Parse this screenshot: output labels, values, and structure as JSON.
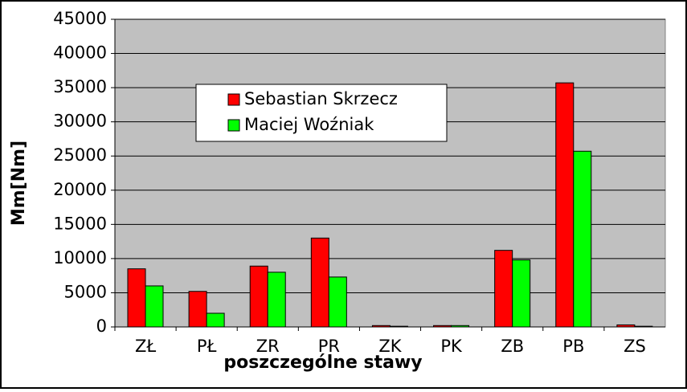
{
  "chart_data": {
    "type": "bar",
    "y_label": "Mm[Nm]",
    "x_label": "poszczególne stawy",
    "categories": [
      "ZŁ",
      "PŁ",
      "ZR",
      "PR",
      "ZK",
      "PK",
      "ZB",
      "PB",
      "ZS"
    ],
    "series": [
      {
        "name": "Sebastian Skrzecz",
        "color": "#ff0000",
        "values": [
          8500,
          5200,
          8900,
          13000,
          200,
          200,
          11200,
          35700,
          300
        ]
      },
      {
        "name": "Maciej Woźniak",
        "color": "#00ff00",
        "values": [
          6000,
          2000,
          8000,
          7300,
          100,
          200,
          9800,
          25700,
          100
        ]
      }
    ],
    "ylim": [
      0,
      45000
    ],
    "yticks": [
      0,
      5000,
      10000,
      15000,
      20000,
      25000,
      30000,
      35000,
      40000,
      45000
    ],
    "grid": true,
    "legend": "upper left"
  }
}
